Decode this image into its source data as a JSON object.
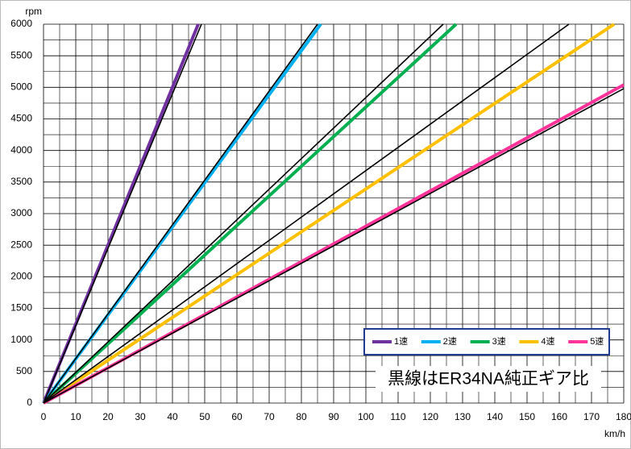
{
  "chart_data": {
    "type": "line",
    "y_label": "rpm",
    "x_label": "km/h",
    "annotation": "黒線はER34NA純正ギア比",
    "xlim": [
      0,
      180
    ],
    "xticks": [
      0,
      10,
      20,
      30,
      40,
      50,
      60,
      70,
      80,
      90,
      100,
      110,
      120,
      130,
      140,
      150,
      160,
      170,
      180
    ],
    "ylim": [
      0,
      6000
    ],
    "yticks": [
      0,
      500,
      1000,
      1500,
      2000,
      2500,
      3000,
      3500,
      4000,
      4500,
      5000,
      5500,
      6000
    ],
    "grid": true,
    "legend": "lower right",
    "series": [
      {
        "name": "1速",
        "color": "#7030a0",
        "x": [
          0,
          48
        ],
        "values": [
          0,
          6000
        ]
      },
      {
        "name": "2速",
        "color": "#00b0f0",
        "x": [
          0,
          86
        ],
        "values": [
          0,
          6000
        ]
      },
      {
        "name": "3速",
        "color": "#00b050",
        "x": [
          0,
          128
        ],
        "values": [
          0,
          6000
        ]
      },
      {
        "name": "4速",
        "color": "#ffc000",
        "x": [
          0,
          177
        ],
        "values": [
          0,
          6000
        ]
      },
      {
        "name": "5速",
        "color": "#ff3399",
        "x": [
          0,
          180
        ],
        "values": [
          0,
          5040
        ]
      }
    ],
    "reference_lines": [
      {
        "color": "#000000",
        "x": [
          0,
          49
        ],
        "values": [
          0,
          6000
        ]
      },
      {
        "color": "#000000",
        "x": [
          0,
          85
        ],
        "values": [
          0,
          6000
        ]
      },
      {
        "color": "#000000",
        "x": [
          0,
          124
        ],
        "values": [
          0,
          6000
        ]
      },
      {
        "color": "#000000",
        "x": [
          0,
          163
        ],
        "values": [
          0,
          6000
        ]
      },
      {
        "color": "#000000",
        "x": [
          0,
          180
        ],
        "values": [
          0,
          4980
        ]
      }
    ]
  }
}
